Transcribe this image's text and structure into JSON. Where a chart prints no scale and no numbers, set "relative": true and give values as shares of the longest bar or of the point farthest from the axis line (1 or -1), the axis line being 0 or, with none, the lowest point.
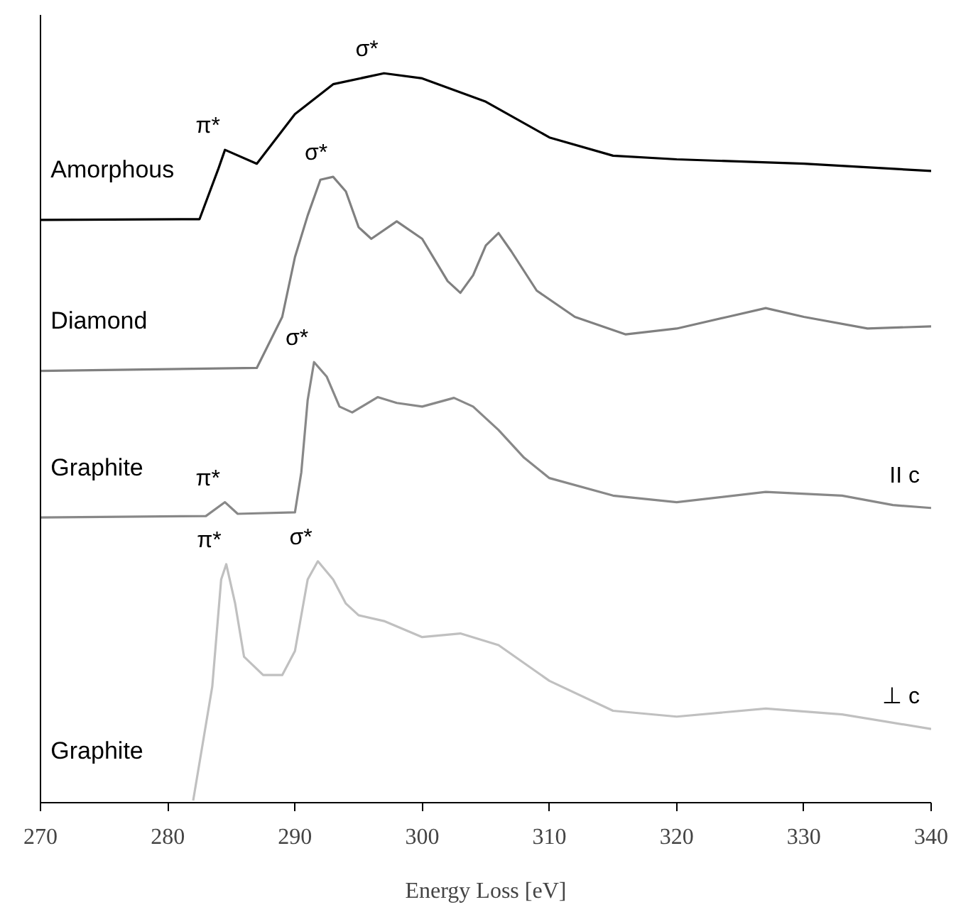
{
  "chart_data": {
    "type": "line",
    "relative": true,
    "xlabel": "Energy Loss [eV]",
    "xlim": [
      270,
      340
    ],
    "xticks": [
      270,
      280,
      290,
      300,
      310,
      320,
      330,
      340
    ],
    "grid": false,
    "line_style": "solid",
    "marker": "none",
    "series": [
      {
        "name": "Amorphous",
        "color": "#000000",
        "x": [
          270,
          282.5,
          284,
          284.5,
          287,
          290,
          293,
          297,
          300,
          305,
          310,
          315,
          320,
          330,
          340
        ],
        "values": [
          0.799,
          0.8,
          0.87,
          0.895,
          0.876,
          0.944,
          0.985,
          1.0,
          0.993,
          0.961,
          0.912,
          0.887,
          0.882,
          0.876,
          0.866
        ]
      },
      {
        "name": "Diamond",
        "color": "#808080",
        "x": [
          270,
          287,
          289,
          290,
          291,
          292,
          293,
          294,
          295,
          296,
          298,
          300,
          302,
          303,
          304,
          305,
          306,
          307,
          309,
          312,
          316,
          320,
          324,
          327,
          330,
          335,
          340
        ],
        "values": [
          0.592,
          0.596,
          0.666,
          0.748,
          0.805,
          0.854,
          0.858,
          0.838,
          0.789,
          0.773,
          0.797,
          0.773,
          0.715,
          0.699,
          0.723,
          0.764,
          0.781,
          0.756,
          0.702,
          0.666,
          0.642,
          0.65,
          0.666,
          0.678,
          0.666,
          0.65,
          0.653
        ]
      },
      {
        "name": "Graphite",
        "color": "#888888",
        "x": [
          270,
          283,
          284.5,
          285.5,
          290,
          290.5,
          291,
          291.5,
          292.5,
          293.5,
          294.5,
          296.5,
          298,
          300,
          302.5,
          304,
          306,
          308,
          310,
          315,
          320,
          327,
          333,
          337,
          340
        ],
        "values": [
          0.391,
          0.393,
          0.412,
          0.396,
          0.398,
          0.453,
          0.552,
          0.604,
          0.584,
          0.543,
          0.535,
          0.556,
          0.548,
          0.543,
          0.555,
          0.543,
          0.511,
          0.473,
          0.445,
          0.421,
          0.412,
          0.426,
          0.421,
          0.408,
          0.404
        ]
      },
      {
        "name": "Graphite",
        "color": "#c0c0c0",
        "x": [
          282,
          283.5,
          284.2,
          284.6,
          285.3,
          286,
          287.5,
          289,
          290,
          291,
          291.8,
          293,
          294,
          295,
          297,
          300,
          303,
          306,
          310,
          315,
          320,
          327,
          333,
          340
        ],
        "values": [
          0.003,
          0.159,
          0.306,
          0.327,
          0.273,
          0.2,
          0.175,
          0.175,
          0.208,
          0.306,
          0.331,
          0.306,
          0.273,
          0.257,
          0.249,
          0.227,
          0.232,
          0.216,
          0.167,
          0.126,
          0.118,
          0.129,
          0.121,
          0.101
        ]
      }
    ],
    "annotations": [
      {
        "text": "π*",
        "x": 284.5,
        "y": 0.895
      },
      {
        "text": "σ*",
        "x": 297,
        "y": 1.0
      },
      {
        "text": "σ*",
        "x": 293,
        "y": 0.858
      },
      {
        "text": "π*",
        "x": 284.5,
        "y": 0.412
      },
      {
        "text": "σ*",
        "x": 291.5,
        "y": 0.604
      },
      {
        "text": "π*",
        "x": 284.6,
        "y": 0.327
      },
      {
        "text": "σ*",
        "x": 291.8,
        "y": 0.331
      },
      "II c",
      "⊥ c"
    ]
  }
}
